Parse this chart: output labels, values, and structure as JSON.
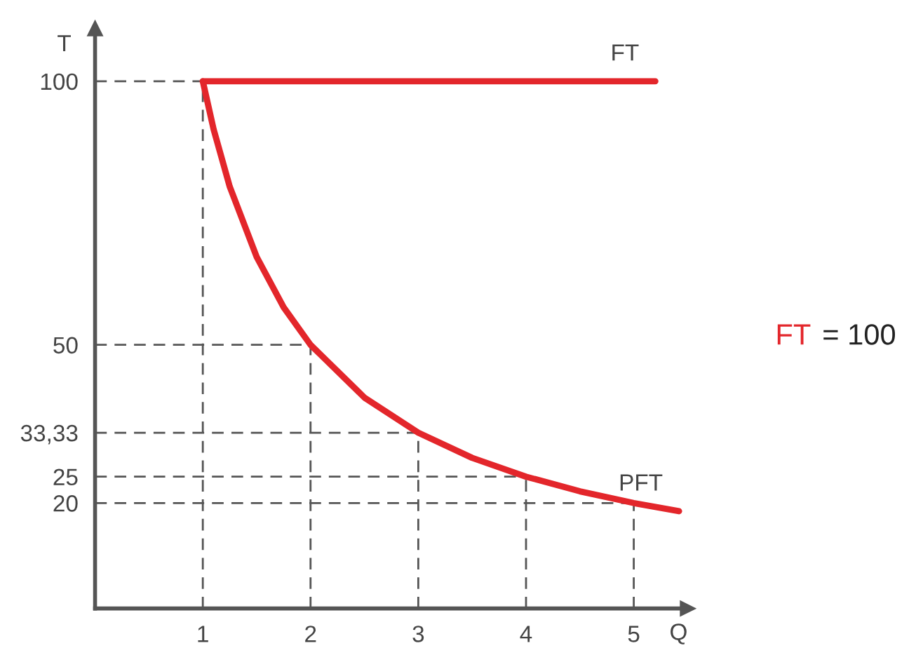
{
  "chart_data": {
    "type": "line",
    "xlabel": "Q",
    "ylabel": "T",
    "series": [
      {
        "name": "FT",
        "color": "#e3262b",
        "x": [
          1,
          5.2
        ],
        "values": [
          100,
          100
        ]
      },
      {
        "name": "PFT",
        "color": "#e3262b",
        "x": [
          1,
          1.1,
          1.25,
          1.5,
          1.75,
          2,
          2.5,
          3,
          3.5,
          4,
          4.5,
          5,
          5.42
        ],
        "values": [
          100,
          90.91,
          80,
          66.67,
          57.14,
          50,
          40,
          33.33,
          28.57,
          25,
          22.22,
          20,
          18.45
        ]
      }
    ],
    "xlim": [
      0,
      5.5
    ],
    "ylim": [
      0,
      110
    ],
    "xticks": [
      1,
      2,
      3,
      4,
      5
    ],
    "yticks": [
      20,
      25,
      {
        "value": 33.33,
        "label": "33,33"
      },
      50,
      100
    ],
    "ref_lines": [
      {
        "axis": "x",
        "value": 1,
        "color": "#555555",
        "line_style": "dashed"
      },
      {
        "axis": "x",
        "value": 2,
        "color": "#555555",
        "line_style": "dashed"
      },
      {
        "axis": "x",
        "value": 3,
        "color": "#555555",
        "line_style": "dashed"
      },
      {
        "axis": "x",
        "value": 4,
        "color": "#555555",
        "line_style": "dashed"
      },
      {
        "axis": "x",
        "value": 5,
        "color": "#555555",
        "line_style": "dashed"
      },
      {
        "axis": "y",
        "value": 100,
        "color": "#555555",
        "line_style": "dashed"
      },
      {
        "axis": "y",
        "value": 50,
        "color": "#555555",
        "line_style": "dashed"
      },
      {
        "axis": "y",
        "value": 33.33,
        "color": "#555555",
        "line_style": "dashed"
      },
      {
        "axis": "y",
        "value": 25,
        "color": "#555555",
        "line_style": "dashed"
      },
      {
        "axis": "y",
        "value": 20,
        "color": "#555555",
        "line_style": "dashed"
      }
    ],
    "annotations": [
      "FT",
      "= 100"
    ],
    "grid": false,
    "legend": false,
    "line_style": "solid",
    "marker": "none"
  }
}
